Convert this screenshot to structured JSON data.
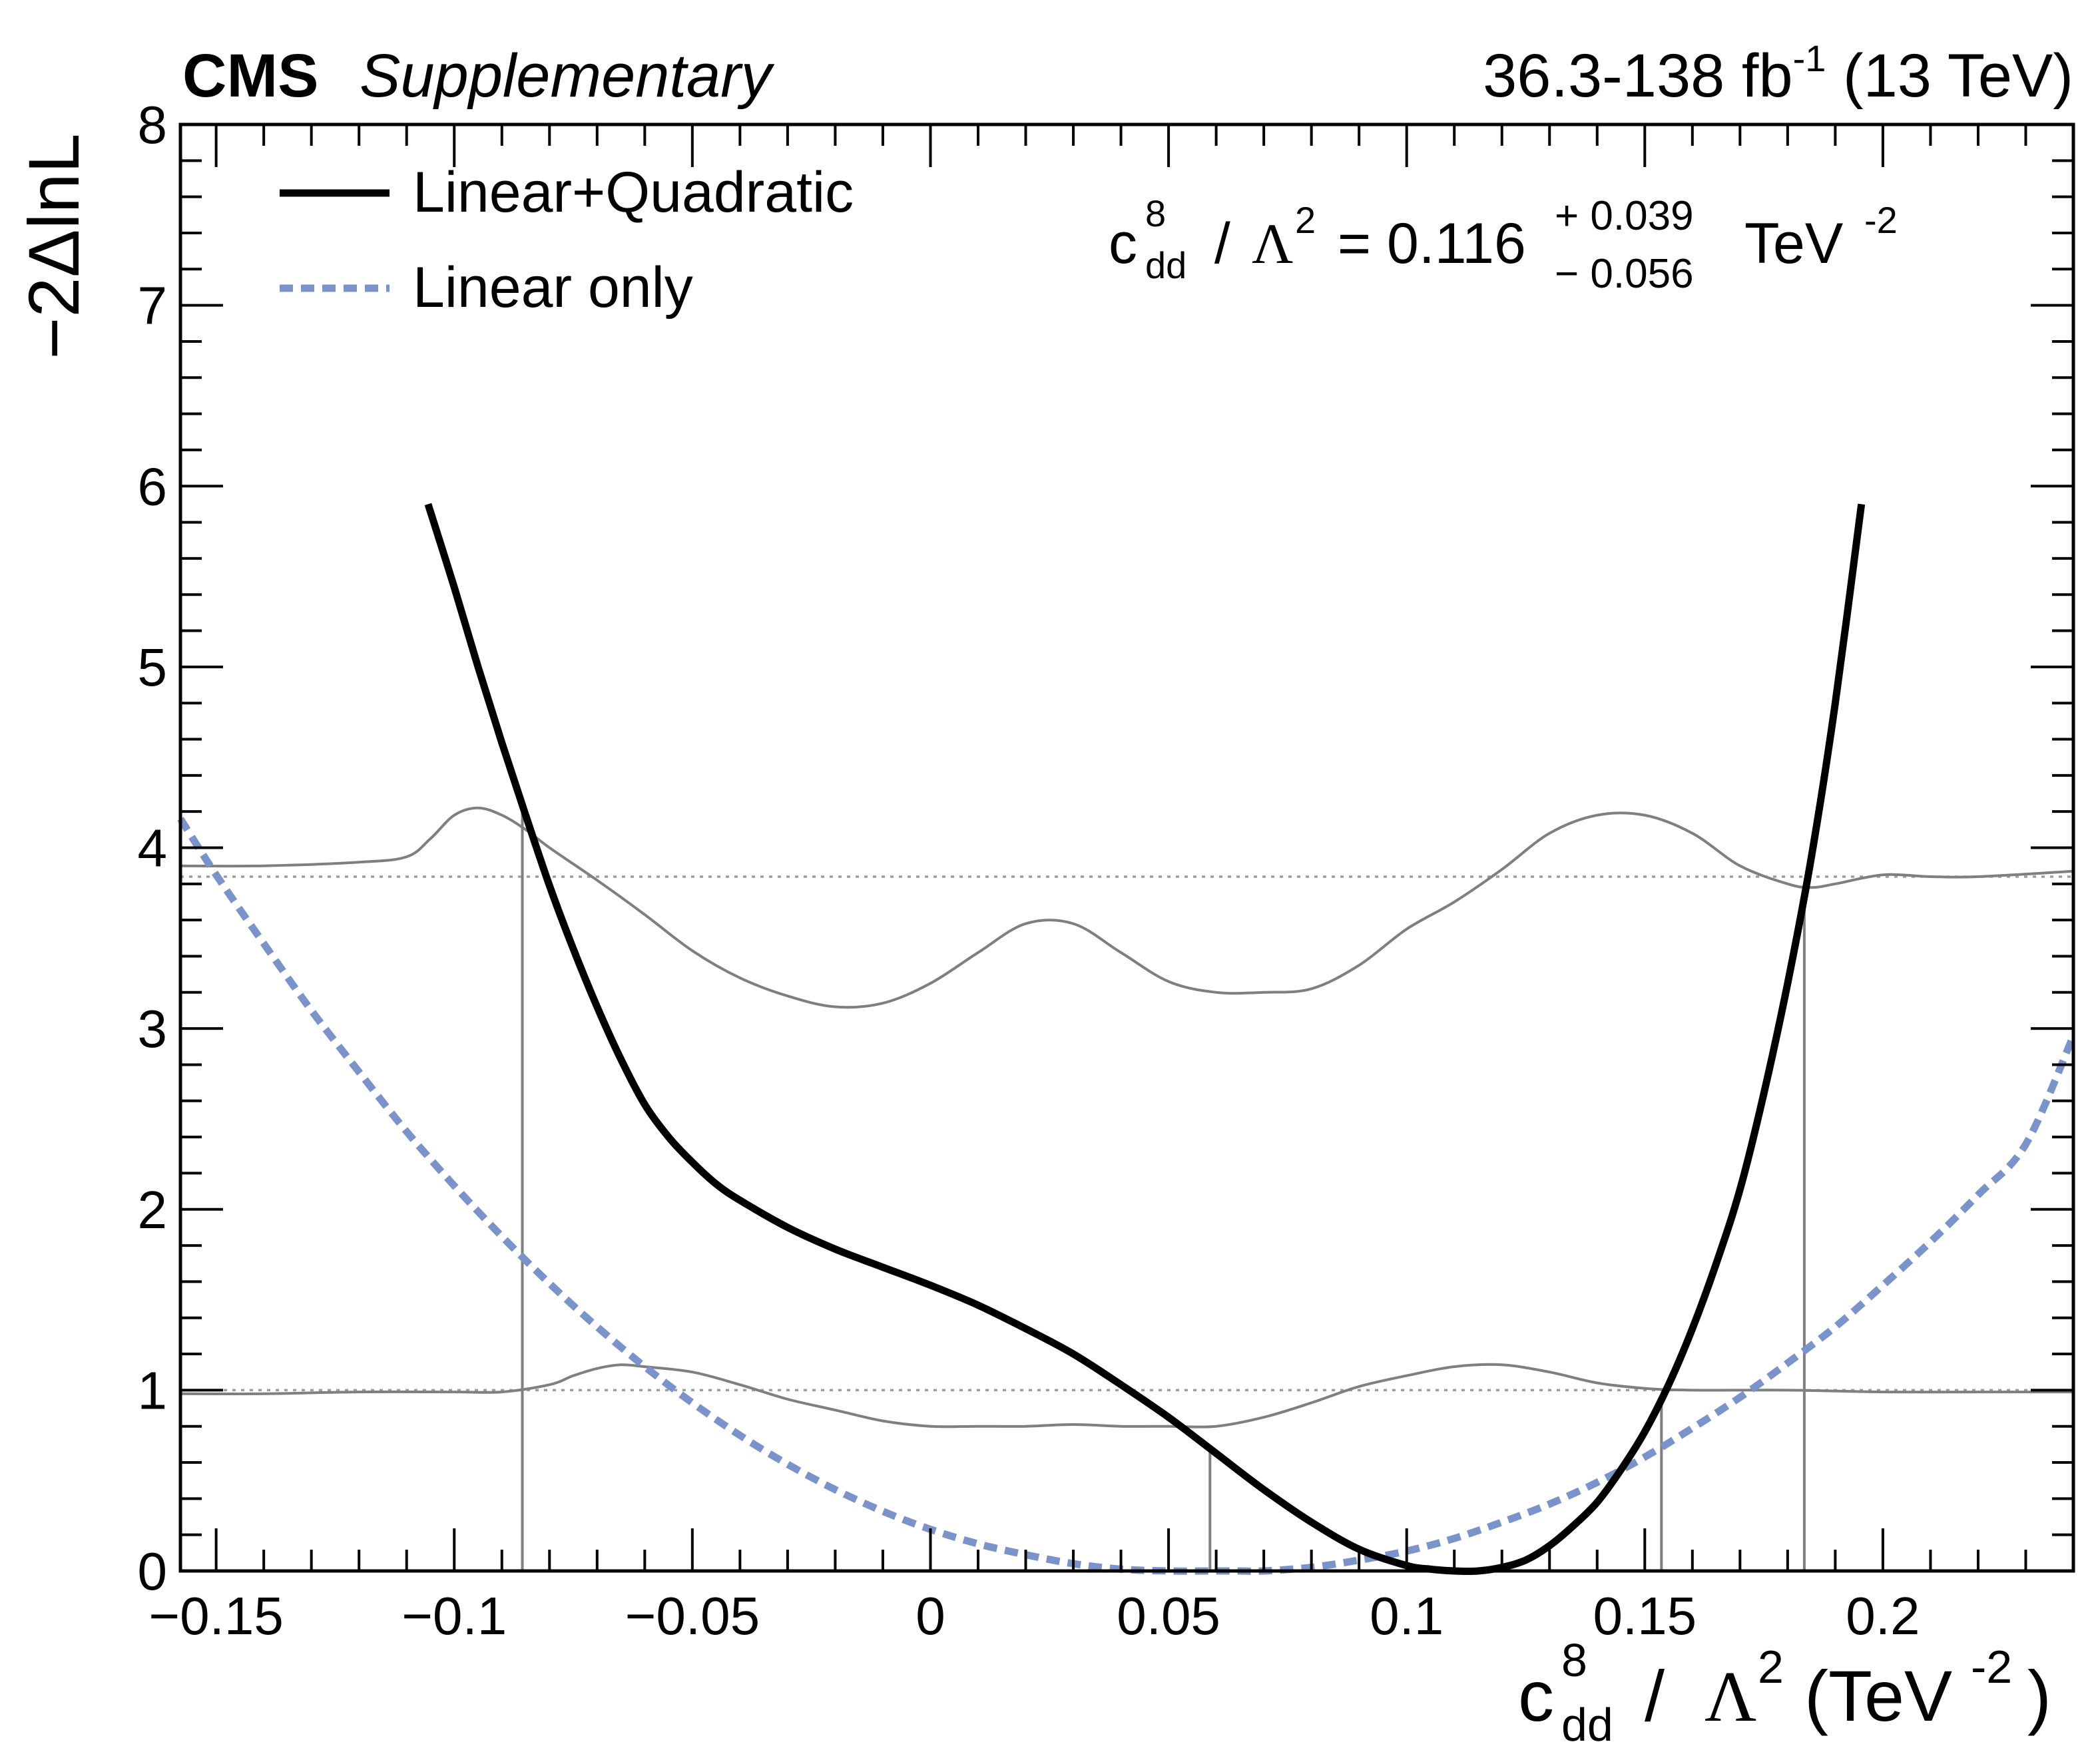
{
  "header": {
    "experiment": "CMS",
    "qualifier": "Supplementary",
    "lumi_prefix": "36.3-138 fb",
    "lumi_exp": "-1",
    "energy": "(13 TeV)"
  },
  "legend": {
    "entries": [
      {
        "label": "Linear+Quadratic",
        "style": "solid-black"
      },
      {
        "label": "Linear only",
        "style": "dashed-blue"
      }
    ]
  },
  "annotation": {
    "c": "c",
    "sup": "8",
    "sub": "dd",
    "slash": " / ",
    "lambda": "Λ",
    "lambda_exp": "2",
    "equals": " = 0.116",
    "err_up": "+ 0.039",
    "err_down": "− 0.056",
    "unit": "TeV",
    "unit_exp": "-2"
  },
  "axes": {
    "ylabel": "−2ΔlnL",
    "xlabel": {
      "c": "c",
      "sup": "8",
      "sub": "dd",
      "slash": " / ",
      "lambda": "Λ",
      "lambda_exp": "2",
      "unit_open": " (TeV",
      "unit_exp": "-2",
      "unit_close": ")"
    }
  },
  "colors": {
    "linear_quadratic": "#000000",
    "linear_only": "#7b93cb",
    "thresholds": "#9e9e9e",
    "intervals": "#7f7f7f"
  },
  "chart_data": {
    "type": "line",
    "title": "",
    "xlim": [
      -0.1575,
      0.24
    ],
    "ylim": [
      0,
      8
    ],
    "xticks": [
      -0.15,
      -0.1,
      -0.05,
      0,
      0.05,
      0.1,
      0.15,
      0.2
    ],
    "xtick_labels": [
      "−0.15",
      "−0.1",
      "−0.05",
      "0",
      "0.05",
      "0.1",
      "0.15",
      "0.2"
    ],
    "yticks": [
      0,
      1,
      2,
      3,
      4,
      5,
      6,
      7,
      8
    ],
    "ytick_labels": [
      "0",
      "1",
      "2",
      "3",
      "4",
      "5",
      "6",
      "7",
      "8"
    ],
    "thresholds": [
      1,
      3.84
    ],
    "interval_lines": [
      -0.0857,
      0.0587,
      0.1535,
      0.1835
    ],
    "series": [
      {
        "name": "Linear+Quadratic",
        "x": [
          -0.1055,
          -0.1,
          -0.095,
          -0.09,
          -0.085,
          -0.08,
          -0.075,
          -0.07,
          -0.065,
          -0.06,
          -0.055,
          -0.05,
          -0.045,
          -0.04,
          -0.03,
          -0.02,
          -0.01,
          0.0,
          0.01,
          0.02,
          0.03,
          0.04,
          0.05,
          0.06,
          0.07,
          0.08,
          0.09,
          0.1,
          0.105,
          0.11,
          0.115,
          0.12,
          0.125,
          0.13,
          0.135,
          0.14,
          0.145,
          0.15,
          0.155,
          0.16,
          0.165,
          0.17,
          0.175,
          0.18,
          0.185,
          0.19,
          0.1955
        ],
        "y": [
          5.9,
          5.44,
          5.0,
          4.58,
          4.18,
          3.79,
          3.44,
          3.12,
          2.83,
          2.58,
          2.4,
          2.26,
          2.14,
          2.05,
          1.9,
          1.78,
          1.68,
          1.58,
          1.47,
          1.34,
          1.2,
          1.03,
          0.85,
          0.65,
          0.45,
          0.27,
          0.12,
          0.03,
          0.01,
          0.0,
          0.0,
          0.02,
          0.06,
          0.14,
          0.25,
          0.38,
          0.56,
          0.77,
          1.03,
          1.34,
          1.7,
          2.11,
          2.64,
          3.25,
          3.95,
          4.8,
          5.9
        ]
      },
      {
        "name": "Linear only",
        "x": [
          -0.1575,
          -0.15,
          -0.14,
          -0.13,
          -0.12,
          -0.11,
          -0.1,
          -0.09,
          -0.08,
          -0.07,
          -0.06,
          -0.05,
          -0.04,
          -0.03,
          -0.02,
          -0.01,
          0.0,
          0.01,
          0.02,
          0.03,
          0.04,
          0.05,
          0.06,
          0.065,
          0.07,
          0.08,
          0.09,
          0.1,
          0.11,
          0.12,
          0.13,
          0.14,
          0.15,
          0.16,
          0.17,
          0.18,
          0.19,
          0.2,
          0.21,
          0.22,
          0.23,
          0.24
        ],
        "y": [
          4.16,
          3.85,
          3.47,
          3.1,
          2.76,
          2.43,
          2.13,
          1.85,
          1.59,
          1.35,
          1.13,
          0.93,
          0.75,
          0.59,
          0.45,
          0.33,
          0.23,
          0.15,
          0.09,
          0.04,
          0.01,
          0.0,
          0.0,
          0.0,
          0.0,
          0.02,
          0.06,
          0.11,
          0.18,
          0.27,
          0.37,
          0.49,
          0.63,
          0.79,
          0.96,
          1.15,
          1.35,
          1.58,
          1.82,
          2.08,
          2.36,
          2.96
        ]
      },
      {
        "name": "Upper threshold band",
        "x": [
          -0.1575,
          -0.14,
          -0.12,
          -0.11,
          -0.105,
          -0.1,
          -0.095,
          -0.09,
          -0.085,
          -0.08,
          -0.07,
          -0.06,
          -0.05,
          -0.04,
          -0.03,
          -0.02,
          -0.01,
          0.0,
          0.01,
          0.02,
          0.03,
          0.04,
          0.05,
          0.06,
          0.07,
          0.08,
          0.09,
          0.1,
          0.11,
          0.12,
          0.13,
          0.14,
          0.15,
          0.16,
          0.17,
          0.18,
          0.185,
          0.19,
          0.2,
          0.21,
          0.22,
          0.24
        ],
        "y": [
          3.9,
          3.9,
          3.92,
          3.95,
          4.05,
          4.18,
          4.22,
          4.18,
          4.1,
          4.0,
          3.82,
          3.63,
          3.43,
          3.28,
          3.18,
          3.12,
          3.14,
          3.25,
          3.42,
          3.58,
          3.58,
          3.42,
          3.26,
          3.2,
          3.2,
          3.22,
          3.35,
          3.55,
          3.7,
          3.88,
          4.08,
          4.18,
          4.18,
          4.08,
          3.9,
          3.8,
          3.78,
          3.8,
          3.85,
          3.84,
          3.84,
          3.87
        ]
      },
      {
        "name": "Lower threshold band",
        "x": [
          -0.1575,
          -0.14,
          -0.12,
          -0.1,
          -0.09,
          -0.08,
          -0.075,
          -0.07,
          -0.065,
          -0.06,
          -0.05,
          -0.04,
          -0.03,
          -0.02,
          -0.01,
          0.0,
          0.01,
          0.02,
          0.03,
          0.04,
          0.05,
          0.06,
          0.07,
          0.08,
          0.09,
          0.1,
          0.11,
          0.12,
          0.13,
          0.14,
          0.15,
          0.16,
          0.18,
          0.2,
          0.22,
          0.24
        ],
        "y": [
          0.98,
          0.98,
          0.99,
          0.99,
          0.99,
          1.03,
          1.08,
          1.12,
          1.14,
          1.13,
          1.1,
          1.03,
          0.95,
          0.89,
          0.83,
          0.8,
          0.8,
          0.8,
          0.81,
          0.8,
          0.8,
          0.8,
          0.85,
          0.93,
          1.02,
          1.08,
          1.13,
          1.14,
          1.1,
          1.04,
          1.01,
          1.0,
          1.0,
          0.99,
          0.99,
          0.99
        ]
      }
    ]
  }
}
